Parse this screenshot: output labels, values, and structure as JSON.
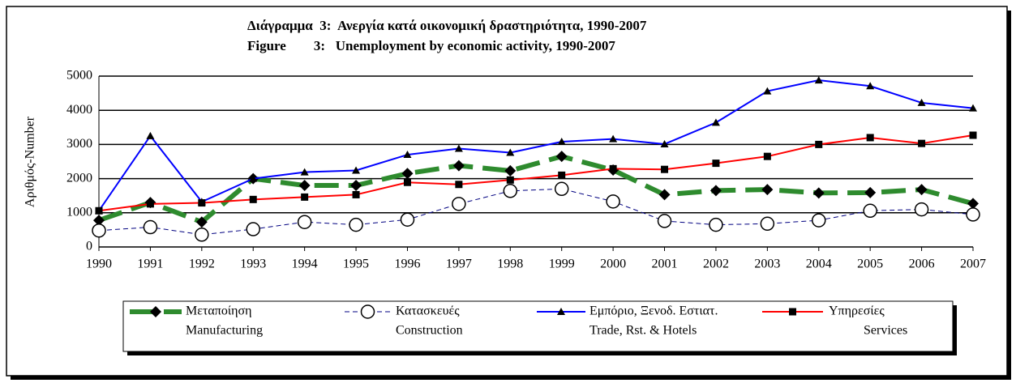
{
  "chart_data": {
    "type": "line",
    "title": [
      "Διάγραμμα  3:  Ανεργία κατά οικονομική δραστηριότητα, 1990-2007",
      "Figure        3:   Unemployment by economic activity, 1990-2007"
    ],
    "y_label": "Αριθμός-Number",
    "categories": [
      "1990",
      "1991",
      "1992",
      "1993",
      "1994",
      "1995",
      "1996",
      "1997",
      "1998",
      "1999",
      "2000",
      "2001",
      "2002",
      "2003",
      "2004",
      "2005",
      "2006",
      "2007"
    ],
    "ylim": [
      0,
      5000
    ],
    "yticks": [
      0,
      1000,
      2000,
      3000,
      4000,
      5000
    ],
    "grid": true,
    "series": [
      {
        "name": [
          "Μεταποίηση",
          "Manufacturing"
        ],
        "color": "#2e8b2e",
        "marker": "diamond",
        "values": [
          780,
          1300,
          730,
          2000,
          1800,
          1800,
          2150,
          2380,
          2230,
          2650,
          2250,
          1530,
          1650,
          1680,
          1580,
          1590,
          1680,
          1270
        ]
      },
      {
        "name": [
          "Κατασκευές",
          "Construction"
        ],
        "color": "#000080",
        "marker": "circle",
        "values": [
          480,
          580,
          360,
          520,
          730,
          650,
          800,
          1260,
          1640,
          1700,
          1330,
          760,
          650,
          680,
          780,
          1060,
          1100,
          950
        ]
      },
      {
        "name": [
          "Εμπόριο, Ξενοδ. Εστιατ.",
          "Trade, Rst. & Hotels"
        ],
        "color": "#0000ff",
        "marker": "triangle",
        "values": [
          1060,
          3250,
          1320,
          2000,
          2190,
          2240,
          2700,
          2880,
          2760,
          3080,
          3160,
          3010,
          3640,
          4560,
          4880,
          4710,
          4220,
          4060
        ]
      },
      {
        "name": [
          "Υπηρεσίες",
          "Services"
        ],
        "color": "#ff0000",
        "marker": "square",
        "values": [
          1060,
          1260,
          1290,
          1390,
          1460,
          1530,
          1890,
          1830,
          1960,
          2100,
          2290,
          2270,
          2450,
          2650,
          3000,
          3200,
          3030,
          3270
        ]
      }
    ]
  }
}
